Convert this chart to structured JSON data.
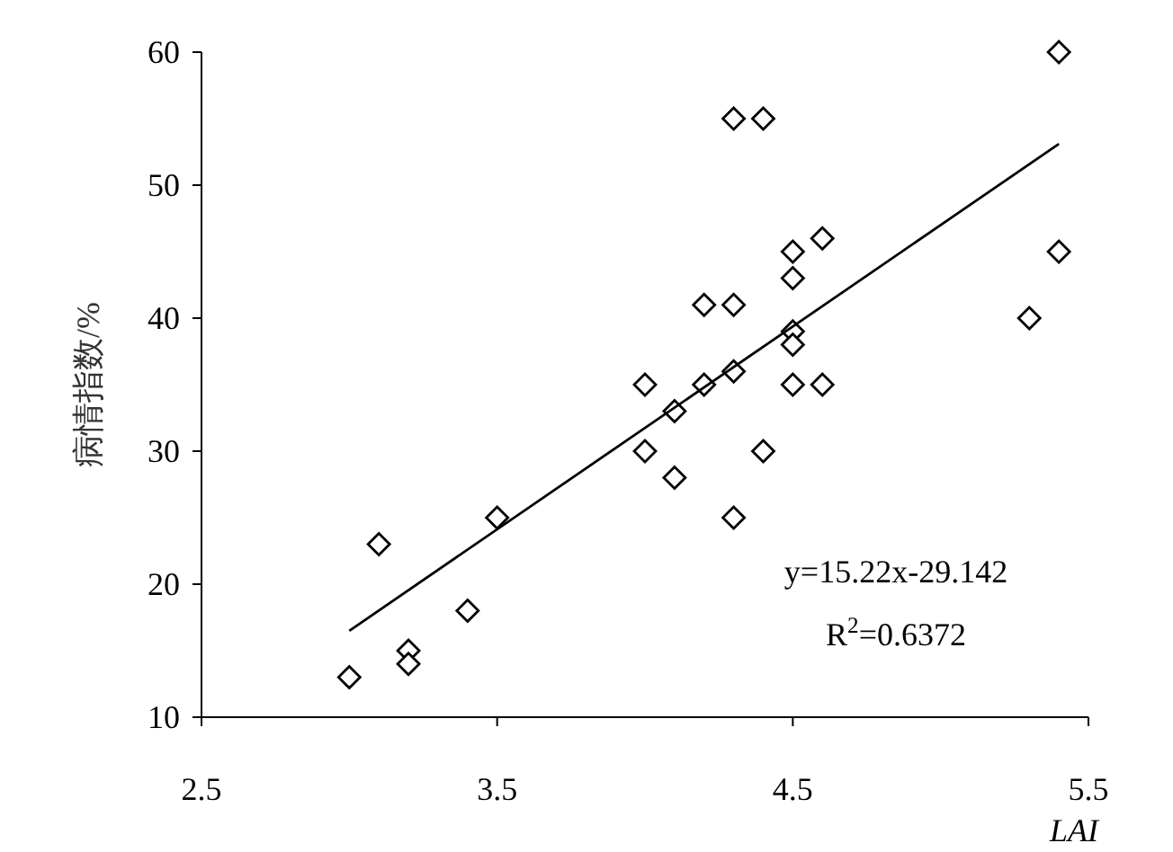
{
  "chart_data": {
    "type": "scatter",
    "xlabel": "LAI",
    "ylabel": "病情指数/%",
    "xlim": [
      2.5,
      5.5
    ],
    "xticks": [
      2.5,
      3.5,
      4.5,
      5.5
    ],
    "ylim": [
      10,
      60
    ],
    "yticks": [
      10,
      20,
      30,
      40,
      50,
      60
    ],
    "grid": false,
    "marker": "diamond",
    "series": [
      {
        "color": "#000000",
        "x": [
          3.0,
          3.1,
          3.2,
          3.2,
          3.4,
          3.5,
          4.0,
          4.0,
          4.1,
          4.1,
          4.2,
          4.2,
          4.3,
          4.3,
          4.3,
          4.3,
          4.4,
          4.4,
          4.5,
          4.5,
          4.5,
          4.5,
          4.5,
          4.6,
          4.6,
          5.3,
          5.4,
          5.4
        ],
        "values": [
          13,
          23,
          15,
          14,
          18,
          25,
          35,
          30,
          33,
          28,
          41,
          35,
          55,
          41,
          36,
          25,
          55,
          30,
          45,
          43,
          39,
          38,
          35,
          46,
          35,
          40,
          45,
          60
        ]
      },
      {
        "type": "line",
        "marker": "none",
        "color": "#000000",
        "x": [
          3.0,
          5.4
        ],
        "values": [
          16.5,
          53.1
        ]
      }
    ],
    "annotations": [
      "y=15.22x-29.142",
      "R$^{2}$=0.6372"
    ]
  }
}
